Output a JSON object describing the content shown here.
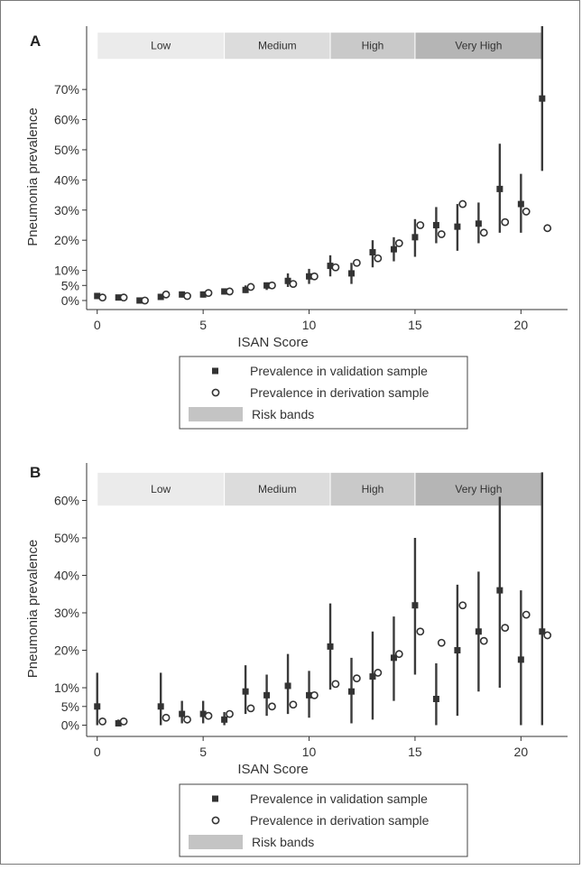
{
  "chart_data": [
    {
      "panel_label": "A",
      "type": "scatter",
      "xlabel": "ISAN Score",
      "ylabel": "Pneumonia prevalence",
      "xlim": [
        -0.5,
        22.2
      ],
      "ylim": [
        -3,
        91
      ],
      "x_ticks": [
        0,
        5,
        10,
        15,
        20
      ],
      "y_ticks": [
        {
          "value": 0,
          "label": "0%"
        },
        {
          "value": 5,
          "label": "5%"
        },
        {
          "value": 10,
          "label": "10%"
        },
        {
          "value": 20,
          "label": "20%"
        },
        {
          "value": 30,
          "label": "30%"
        },
        {
          "value": 40,
          "label": "40%"
        },
        {
          "value": 50,
          "label": "50%"
        },
        {
          "value": 60,
          "label": "60%"
        },
        {
          "value": 70,
          "label": "70%"
        }
      ],
      "risk_bands": [
        {
          "label": "Low",
          "from": 0,
          "to": 6,
          "color": "#ebebeb"
        },
        {
          "label": "Medium",
          "from": 6,
          "to": 11,
          "color": "#dcdcdc"
        },
        {
          "label": "High",
          "from": 11,
          "to": 15,
          "color": "#c9c9c9"
        },
        {
          "label": "Very High",
          "from": 15,
          "to": 21,
          "color": "#b5b5b5"
        }
      ],
      "band_y": [
        80,
        89
      ],
      "validation": [
        {
          "x": 0,
          "y": 1.5,
          "lo": 0.5,
          "hi": 2.5
        },
        {
          "x": 1,
          "y": 1,
          "lo": 0.5,
          "hi": 1.5
        },
        {
          "x": 2,
          "y": 0,
          "lo": 0,
          "hi": 0
        },
        {
          "x": 3,
          "y": 1.2,
          "lo": 0.5,
          "hi": 2
        },
        {
          "x": 4,
          "y": 2,
          "lo": 1,
          "hi": 3
        },
        {
          "x": 5,
          "y": 2,
          "lo": 1,
          "hi": 3
        },
        {
          "x": 6,
          "y": 3,
          "lo": 2,
          "hi": 4
        },
        {
          "x": 7,
          "y": 3.5,
          "lo": 2.5,
          "hi": 5
        },
        {
          "x": 8,
          "y": 5,
          "lo": 3.5,
          "hi": 6
        },
        {
          "x": 9,
          "y": 6.5,
          "lo": 4.5,
          "hi": 9
        },
        {
          "x": 10,
          "y": 8,
          "lo": 5.5,
          "hi": 10.5
        },
        {
          "x": 11,
          "y": 11.5,
          "lo": 8,
          "hi": 15
        },
        {
          "x": 12,
          "y": 9,
          "lo": 5.5,
          "hi": 12.5
        },
        {
          "x": 13,
          "y": 16,
          "lo": 11,
          "hi": 20
        },
        {
          "x": 14,
          "y": 17,
          "lo": 13,
          "hi": 21
        },
        {
          "x": 15,
          "y": 21,
          "lo": 14.5,
          "hi": 27
        },
        {
          "x": 16,
          "y": 25,
          "lo": 19,
          "hi": 31
        },
        {
          "x": 17,
          "y": 24.5,
          "lo": 16.5,
          "hi": 32
        },
        {
          "x": 18,
          "y": 25.5,
          "lo": 19,
          "hi": 32.5
        },
        {
          "x": 19,
          "y": 37,
          "lo": 22.5,
          "hi": 52
        },
        {
          "x": 20,
          "y": 32,
          "lo": 22.5,
          "hi": 42
        },
        {
          "x": 21,
          "y": 67,
          "lo": 43,
          "hi": 91
        }
      ],
      "derivation": [
        {
          "x": 0.25,
          "y": 1
        },
        {
          "x": 1.25,
          "y": 1
        },
        {
          "x": 2.25,
          "y": 0
        },
        {
          "x": 3.25,
          "y": 2
        },
        {
          "x": 4.25,
          "y": 1.5
        },
        {
          "x": 5.25,
          "y": 2.5
        },
        {
          "x": 6.25,
          "y": 3
        },
        {
          "x": 7.25,
          "y": 4.5
        },
        {
          "x": 8.25,
          "y": 5
        },
        {
          "x": 9.25,
          "y": 5.5
        },
        {
          "x": 10.25,
          "y": 8
        },
        {
          "x": 11.25,
          "y": 11
        },
        {
          "x": 12.25,
          "y": 12.5
        },
        {
          "x": 13.25,
          "y": 14
        },
        {
          "x": 14.25,
          "y": 19
        },
        {
          "x": 15.25,
          "y": 25
        },
        {
          "x": 16.25,
          "y": 22
        },
        {
          "x": 17.25,
          "y": 32
        },
        {
          "x": 18.25,
          "y": 22.5
        },
        {
          "x": 19.25,
          "y": 26
        },
        {
          "x": 20.25,
          "y": 29.5
        },
        {
          "x": 21.25,
          "y": 24
        }
      ],
      "legend": [
        {
          "kind": "validation",
          "label": "Prevalence in validation sample"
        },
        {
          "kind": "derivation",
          "label": "Prevalence in derivation sample"
        },
        {
          "kind": "band",
          "label": "Risk bands"
        }
      ]
    },
    {
      "panel_label": "B",
      "type": "scatter",
      "xlabel": "ISAN Score",
      "ylabel": "Pneumonia prevalence",
      "xlim": [
        -0.5,
        22.2
      ],
      "ylim": [
        -3,
        70
      ],
      "x_ticks": [
        0,
        5,
        10,
        15,
        20
      ],
      "y_ticks": [
        {
          "value": 0,
          "label": "0%"
        },
        {
          "value": 5,
          "label": "5%"
        },
        {
          "value": 10,
          "label": "10%"
        },
        {
          "value": 20,
          "label": "20%"
        },
        {
          "value": 30,
          "label": "30%"
        },
        {
          "value": 40,
          "label": "40%"
        },
        {
          "value": 50,
          "label": "50%"
        },
        {
          "value": 60,
          "label": "60%"
        }
      ],
      "risk_bands": [
        {
          "label": "Low",
          "from": 0,
          "to": 6,
          "color": "#ebebeb"
        },
        {
          "label": "Medium",
          "from": 6,
          "to": 11,
          "color": "#dcdcdc"
        },
        {
          "label": "High",
          "from": 11,
          "to": 15,
          "color": "#c9c9c9"
        },
        {
          "label": "Very High",
          "from": 15,
          "to": 21,
          "color": "#b5b5b5"
        }
      ],
      "band_y": [
        58.5,
        67.5
      ],
      "validation": [
        {
          "x": 0,
          "y": 5,
          "lo": 0,
          "hi": 14
        },
        {
          "x": 1,
          "y": 0.5,
          "lo": 0,
          "hi": 1.5
        },
        {
          "x": 3,
          "y": 5,
          "lo": 0,
          "hi": 14
        },
        {
          "x": 4,
          "y": 3,
          "lo": 0.5,
          "hi": 6.5
        },
        {
          "x": 5,
          "y": 3,
          "lo": 0.5,
          "hi": 6.5
        },
        {
          "x": 6,
          "y": 1.5,
          "lo": 0,
          "hi": 3.5
        },
        {
          "x": 7,
          "y": 9,
          "lo": 3,
          "hi": 16
        },
        {
          "x": 8,
          "y": 8,
          "lo": 2.5,
          "hi": 13.5
        },
        {
          "x": 9,
          "y": 10.5,
          "lo": 3,
          "hi": 19
        },
        {
          "x": 10,
          "y": 8,
          "lo": 2,
          "hi": 14.5
        },
        {
          "x": 11,
          "y": 21,
          "lo": 9.5,
          "hi": 32.5
        },
        {
          "x": 12,
          "y": 9,
          "lo": 0.5,
          "hi": 18
        },
        {
          "x": 13,
          "y": 13,
          "lo": 1.5,
          "hi": 25
        },
        {
          "x": 14,
          "y": 18,
          "lo": 6.5,
          "hi": 29
        },
        {
          "x": 15,
          "y": 32,
          "lo": 13.5,
          "hi": 50
        },
        {
          "x": 16,
          "y": 7,
          "lo": 0,
          "hi": 16.5
        },
        {
          "x": 17,
          "y": 20,
          "lo": 2.5,
          "hi": 37.5
        },
        {
          "x": 18,
          "y": 25,
          "lo": 9,
          "hi": 41
        },
        {
          "x": 19,
          "y": 36,
          "lo": 10,
          "hi": 61
        },
        {
          "x": 20,
          "y": 17.5,
          "lo": 0,
          "hi": 36
        },
        {
          "x": 21,
          "y": 25,
          "lo": 0,
          "hi": 67.5
        }
      ],
      "derivation": [
        {
          "x": 0.25,
          "y": 1
        },
        {
          "x": 1.25,
          "y": 1
        },
        {
          "x": 3.25,
          "y": 2
        },
        {
          "x": 4.25,
          "y": 1.5
        },
        {
          "x": 5.25,
          "y": 2.5
        },
        {
          "x": 6.25,
          "y": 3
        },
        {
          "x": 7.25,
          "y": 4.5
        },
        {
          "x": 8.25,
          "y": 5
        },
        {
          "x": 9.25,
          "y": 5.5
        },
        {
          "x": 10.25,
          "y": 8
        },
        {
          "x": 11.25,
          "y": 11
        },
        {
          "x": 12.25,
          "y": 12.5
        },
        {
          "x": 13.25,
          "y": 14
        },
        {
          "x": 14.25,
          "y": 19
        },
        {
          "x": 15.25,
          "y": 25
        },
        {
          "x": 16.25,
          "y": 22
        },
        {
          "x": 17.25,
          "y": 32
        },
        {
          "x": 18.25,
          "y": 22.5
        },
        {
          "x": 19.25,
          "y": 26
        },
        {
          "x": 20.25,
          "y": 29.5
        },
        {
          "x": 21.25,
          "y": 24
        }
      ],
      "legend": [
        {
          "kind": "validation",
          "label": "Prevalence in validation sample"
        },
        {
          "kind": "derivation",
          "label": "Prevalence in derivation sample"
        },
        {
          "kind": "band",
          "label": "Risk bands"
        }
      ]
    }
  ]
}
